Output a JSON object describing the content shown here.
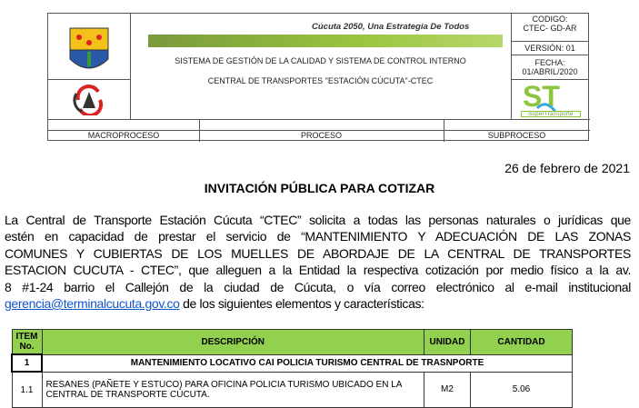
{
  "header": {
    "slogan": "Cúcuta 2050, Una Estrategia De Todos",
    "system_title": "SISTEMA DE GESTIÓN DE LA CALIDAD Y SISTEMA DE CONTROL INTERNO",
    "entity": "CENTRAL DE TRANSPORTES \"ESTACIÓN CÚCUTA\"-CTEC",
    "codigo_label": "CODIGO:",
    "codigo_value": "CTEC- GD-AR",
    "version": "VERSIÓN: 01",
    "fecha_label": "FECHA:",
    "fecha_value": "01/ABRIL/2020",
    "supertransporte_logo_text": "SuperTransporte",
    "macroproceso": "MACROPROCESO",
    "proceso": "PROCESO",
    "subproceso": "SUBPROCESO"
  },
  "date": "26 de febrero de 2021",
  "title": "INVITACIÓN PÚBLICA PARA COTIZAR",
  "paragraph": {
    "lines": [
      "La Central de Transporte Estación Cúcuta “CTEC” solicita a todas las personas naturales o jurídicas que",
      "estén en capacidad de prestar el servicio de “MANTENIMIENTO Y ADECUACIÓN DE LAS ZONAS",
      "COMUNES  Y CUBIERTAS DE LOS MUELLES DE ABORDAJE DE LA CENTRAL DE TRANSPORTES",
      "ESTACION CUCUTA - CTEC”, que alleguen a la Entidad la respectiva cotización por medio físico a la av.",
      "8 #1-24 barrio el Callejón de la ciudad de Cúcuta, o vía correo electrónico al e-mail institucional"
    ],
    "email": "gerencia@terminalcucuta.gov.co",
    "last_line_rest": " de los siguientes elementos y características:"
  },
  "table": {
    "headers": {
      "item": "ITEM No.",
      "descripcion": "DESCRIPCIÓN",
      "unidad": "UNIDAD",
      "cantidad": "CANTIDAD"
    },
    "section": {
      "item": "1",
      "title": "MANTENIMIENTO LOCATIVO CAI POLICIA TURISMO CENTRAL DE TRASNPORTE"
    },
    "rows": [
      {
        "item": "1.1",
        "descripcion": "RESANES (PAÑETE Y ESTUCO) PARA OFICINA POLICIA TURISMO UBICADO EN LA CENTRAL DE TRANSPORTE CÚCUTA.",
        "unidad": "M2",
        "cantidad": "5.06"
      }
    ],
    "header_color": "#92d050"
  }
}
